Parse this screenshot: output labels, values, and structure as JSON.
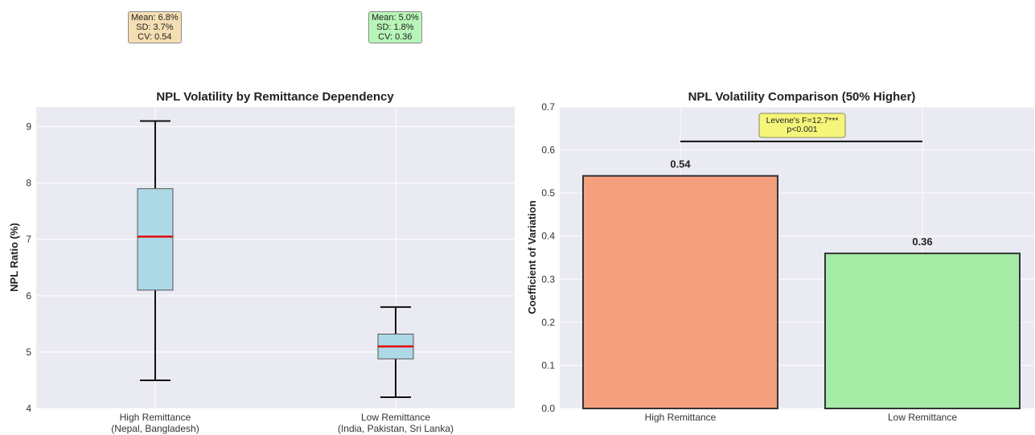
{
  "chart_data": [
    {
      "type": "box",
      "title": "NPL Volatility by Remittance Dependency",
      "xlabel": "",
      "ylabel": "NPL Ratio (%)",
      "ylim": [
        4,
        9.35
      ],
      "yticks": [
        4,
        5,
        6,
        7,
        8,
        9
      ],
      "grid": true,
      "categories": [
        "High Remittance\n(Nepal, Bangladesh)",
        "Low Remittance\n(India, Pakistan, Sri Lanka)"
      ],
      "boxes": [
        {
          "min": 4.5,
          "q1": 6.1,
          "median": 7.05,
          "q3": 7.9,
          "max": 9.1
        },
        {
          "min": 4.2,
          "q1": 4.88,
          "median": 5.1,
          "q3": 5.32,
          "max": 5.8
        }
      ],
      "colors": {
        "box_fill": "#add8e6",
        "median": "#e60000",
        "whisker": "#000000"
      },
      "annotations": [
        {
          "lines": [
            "Mean: 6.8%",
            "SD: 3.7%",
            "CV: 0.54"
          ],
          "color": "#f5deb3"
        },
        {
          "lines": [
            "Mean: 5.0%",
            "SD: 1.8%",
            "CV: 0.36"
          ],
          "color": "#b8f5b8"
        }
      ]
    },
    {
      "type": "bar",
      "title": "NPL Volatility Comparison (50% Higher)",
      "xlabel": "",
      "ylabel": "Coefficient of Variation",
      "ylim": [
        0,
        0.7
      ],
      "yticks": [
        0.0,
        0.1,
        0.2,
        0.3,
        0.4,
        0.5,
        0.6,
        0.7
      ],
      "ytick_labels": [
        "0.0",
        "0.1",
        "0.2",
        "0.3",
        "0.4",
        "0.5",
        "0.6",
        "0.7"
      ],
      "grid": true,
      "categories": [
        "High Remittance",
        "Low Remittance"
      ],
      "values": [
        0.54,
        0.36
      ],
      "value_labels": [
        "0.54",
        "0.36"
      ],
      "colors": [
        "#f4a07f",
        "#a6eba6"
      ],
      "annotation": {
        "text": [
          "Levene's F=12.7***",
          "p<0.001"
        ],
        "line_y": 0.62,
        "color": "#f5f57a"
      }
    }
  ]
}
